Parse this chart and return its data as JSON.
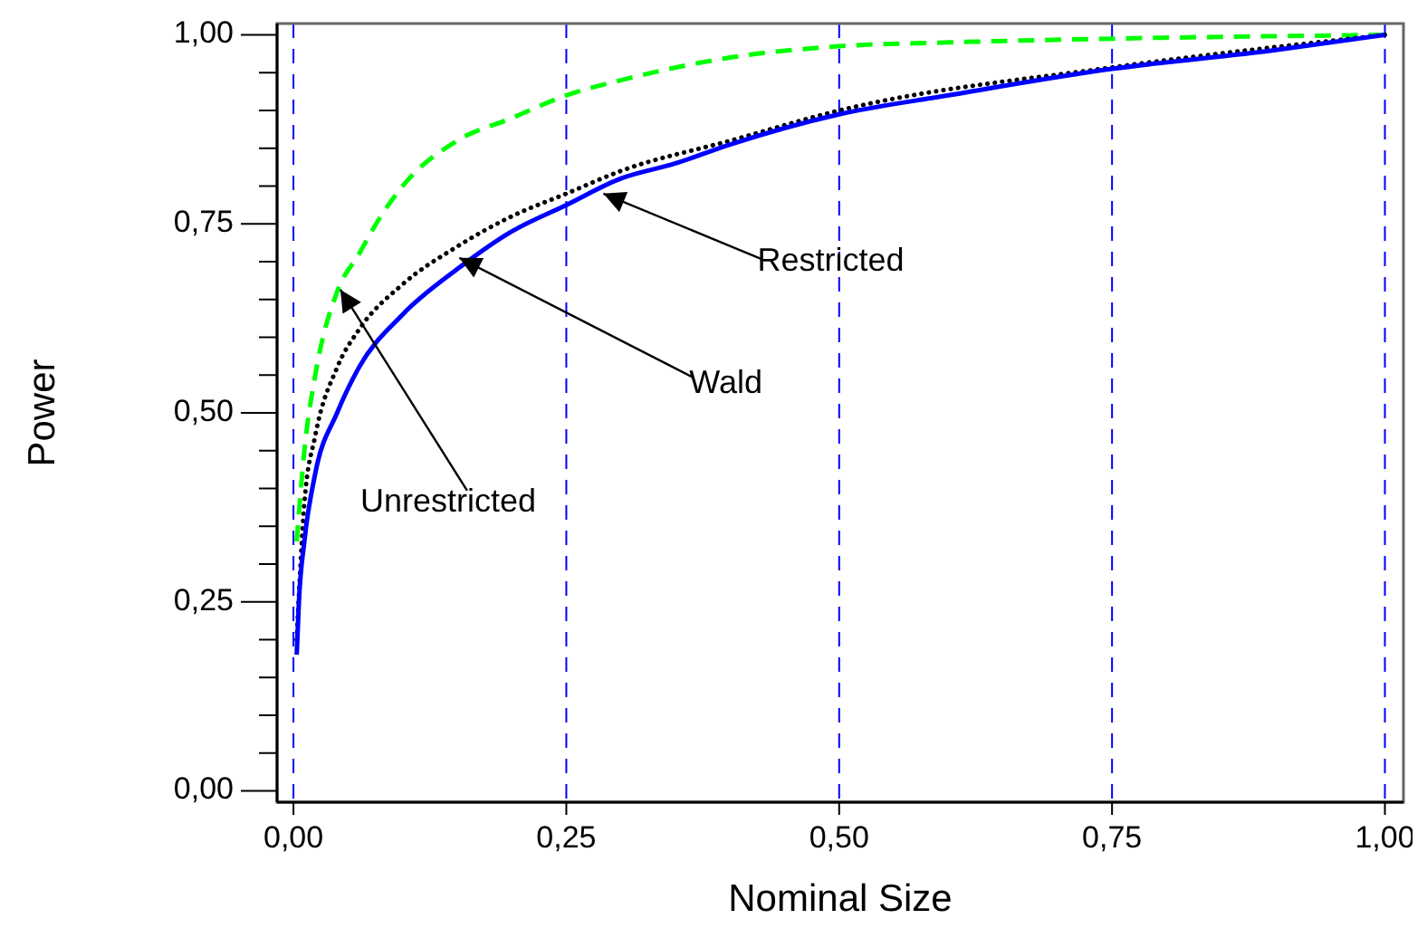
{
  "chart_data": {
    "type": "line",
    "xlabel": "Nominal Size",
    "ylabel": "Power",
    "xlim": [
      -0.015,
      1.017
    ],
    "ylim": [
      -0.015,
      1.015
    ],
    "xticks": [
      {
        "value": 0,
        "label": "0,00"
      },
      {
        "value": 0.25,
        "label": "0,25"
      },
      {
        "value": 0.5,
        "label": "0,50"
      },
      {
        "value": 0.75,
        "label": "0,75"
      },
      {
        "value": 1,
        "label": "1,00"
      }
    ],
    "yticks": [
      {
        "value": 0,
        "label": "0,00"
      },
      {
        "value": 0.05,
        "label": null
      },
      {
        "value": 0.1,
        "label": null
      },
      {
        "value": 0.15,
        "label": null
      },
      {
        "value": 0.2,
        "label": null
      },
      {
        "value": 0.25,
        "label": "0,25"
      },
      {
        "value": 0.3,
        "label": null
      },
      {
        "value": 0.35,
        "label": null
      },
      {
        "value": 0.4,
        "label": null
      },
      {
        "value": 0.45,
        "label": null
      },
      {
        "value": 0.5,
        "label": "0,50"
      },
      {
        "value": 0.55,
        "label": null
      },
      {
        "value": 0.6,
        "label": null
      },
      {
        "value": 0.65,
        "label": null
      },
      {
        "value": 0.7,
        "label": null
      },
      {
        "value": 0.75,
        "label": "0,75"
      },
      {
        "value": 0.8,
        "label": null
      },
      {
        "value": 0.85,
        "label": null
      },
      {
        "value": 0.9,
        "label": null
      },
      {
        "value": 0.95,
        "label": null
      },
      {
        "value": 1,
        "label": "1,00"
      }
    ],
    "grid": "x",
    "marker": "none",
    "series": [
      {
        "color": "#00ff00",
        "line_style": "dashed",
        "x": [
          0.003,
          0.01,
          0.02,
          0.04,
          0.06,
          0.08,
          0.1,
          0.15,
          0.2,
          0.25,
          0.3,
          0.4,
          0.5,
          0.6,
          0.75,
          1
        ],
        "values": [
          0.33,
          0.45,
          0.55,
          0.66,
          0.71,
          0.76,
          0.8,
          0.86,
          0.89,
          0.92,
          0.94,
          0.97,
          0.985,
          0.99,
          0.995,
          1
        ]
      },
      {
        "color": "#000000",
        "line_style": "dotted",
        "x": [
          0.003,
          0.01,
          0.02,
          0.04,
          0.06,
          0.1,
          0.15,
          0.2,
          0.25,
          0.3,
          0.4,
          0.5,
          0.75,
          1
        ],
        "values": [
          0.2,
          0.38,
          0.47,
          0.56,
          0.61,
          0.67,
          0.72,
          0.76,
          0.79,
          0.82,
          0.86,
          0.9,
          0.957,
          1
        ]
      },
      {
        "color": "#0000ff",
        "line_style": "solid",
        "x": [
          0.003,
          0.005,
          0.01,
          0.02,
          0.04,
          0.06,
          0.1,
          0.15,
          0.2,
          0.25,
          0.3,
          0.35,
          0.4,
          0.5,
          0.6,
          0.75,
          0.9,
          1
        ],
        "values": [
          0.18,
          0.25,
          0.33,
          0.42,
          0.5,
          0.56,
          0.63,
          0.69,
          0.74,
          0.775,
          0.81,
          0.83,
          0.855,
          0.895,
          0.92,
          0.955,
          0.98,
          1
        ]
      }
    ],
    "annotations": [
      {
        "text": "Restricted",
        "x": 0.284,
        "y": 0.79
      },
      {
        "text": "Wald",
        "x": 0.152,
        "y": 0.705
      },
      {
        "text": "Unrestricted",
        "x": 0.043,
        "y": 0.663
      }
    ]
  }
}
